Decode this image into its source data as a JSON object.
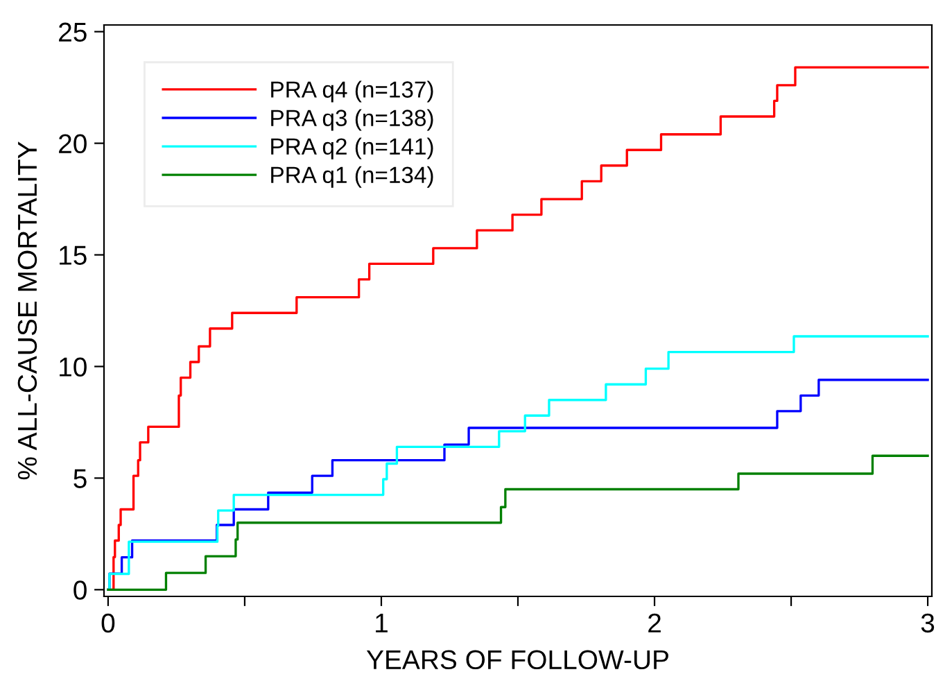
{
  "chart_data": {
    "type": "step",
    "xlabel": "YEARS OF FOLLOW-UP",
    "ylabel": "% ALL-CAUSE MORTALITY",
    "xlim": [
      -0.015,
      3.015
    ],
    "ylim": [
      -0.3,
      25.3
    ],
    "xticks": [
      0,
      {
        "value": 0.5,
        "label": null
      },
      1,
      {
        "value": 1.5,
        "label": null
      },
      2,
      {
        "value": 2.5,
        "label": null
      },
      3
    ],
    "yticks": [
      0,
      5,
      10,
      15,
      20,
      25
    ],
    "grid": false,
    "legend": "top left",
    "marker": "none",
    "line_style": "solid",
    "series": [
      {
        "name": "PRA q4 (n=137)",
        "color": "#ff0000",
        "x": [
          0,
          0.02,
          0.025,
          0.039,
          0.046,
          0.093,
          0.11,
          0.117,
          0.147,
          0.259,
          0.266,
          0.301,
          0.332,
          0.373,
          0.454,
          0.69,
          0.918,
          0.956,
          1.19,
          1.35,
          1.48,
          1.586,
          1.734,
          1.805,
          1.899,
          2.024,
          2.242,
          2.438,
          2.449,
          2.515,
          3
        ],
        "values": [
          0,
          1.46,
          2.2,
          2.9,
          3.6,
          5.1,
          5.8,
          6.6,
          7.3,
          8.7,
          9.5,
          10.2,
          10.9,
          11.7,
          12.4,
          13.1,
          13.9,
          14.6,
          15.3,
          16.1,
          16.8,
          17.5,
          18.3,
          19.0,
          19.7,
          20.4,
          21.2,
          21.9,
          22.6,
          23.4,
          23.4
        ]
      },
      {
        "name": "PRA q3 (n=138)",
        "color": "#0000ff",
        "x": [
          0,
          0.005,
          0.05,
          0.088,
          0.398,
          0.46,
          0.586,
          0.747,
          0.821,
          1.231,
          1.32,
          2.449,
          2.535,
          2.601,
          3
        ],
        "values": [
          0,
          0.72,
          1.45,
          2.2,
          2.9,
          3.6,
          4.35,
          5.1,
          5.8,
          6.5,
          7.25,
          8.0,
          8.7,
          9.4,
          9.4
        ]
      },
      {
        "name": "PRA q2 (n=141)",
        "color": "#00ffff",
        "x": [
          0,
          0.005,
          0.076,
          0.4,
          0.403,
          0.46,
          1.007,
          1.02,
          1.057,
          1.431,
          1.526,
          1.614,
          1.822,
          1.968,
          2.051,
          2.51,
          3
        ],
        "values": [
          0,
          0.71,
          2.15,
          2.85,
          3.55,
          4.25,
          4.95,
          5.65,
          6.4,
          7.1,
          7.8,
          8.5,
          9.2,
          9.9,
          10.65,
          11.35,
          11.35
        ]
      },
      {
        "name": "PRA q1 (n=134)",
        "color": "#008000",
        "x": [
          0,
          0.212,
          0.357,
          0.467,
          0.474,
          1.438,
          1.454,
          2.307,
          2.798,
          3
        ],
        "values": [
          0,
          0.75,
          1.5,
          2.25,
          3.0,
          3.7,
          4.5,
          5.2,
          6.0,
          6.0
        ]
      }
    ]
  }
}
